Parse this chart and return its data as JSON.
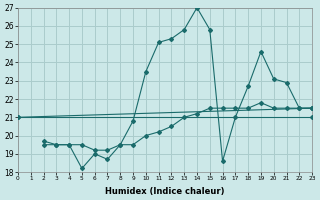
{
  "xlabel": "Humidex (Indice chaleur)",
  "bg_color": "#cce8e8",
  "grid_color": "#aacccc",
  "line_color": "#1a6b6b",
  "xlim": [
    0,
    23
  ],
  "ylim": [
    18,
    27
  ],
  "yticks": [
    18,
    19,
    20,
    21,
    22,
    23,
    24,
    25,
    26,
    27
  ],
  "xticks": [
    0,
    1,
    2,
    3,
    4,
    5,
    6,
    7,
    8,
    9,
    10,
    11,
    12,
    13,
    14,
    15,
    16,
    17,
    18,
    19,
    20,
    21,
    22,
    23
  ],
  "line1": {
    "x": [
      0,
      23
    ],
    "y": [
      21,
      21
    ]
  },
  "line2": {
    "x": [
      0,
      23
    ],
    "y": [
      21,
      21.5
    ]
  },
  "line3": {
    "x": [
      2,
      3,
      4,
      5,
      6,
      7,
      8,
      9,
      10,
      11,
      12,
      13,
      14,
      15,
      16,
      17,
      18,
      19,
      20,
      21,
      22,
      23
    ],
    "y": [
      19.5,
      19.5,
      19.5,
      18.2,
      19.0,
      18.7,
      19.5,
      20.8,
      23.5,
      25.1,
      25.3,
      25.8,
      27.0,
      25.8,
      18.6,
      21.0,
      22.7,
      24.6,
      23.1,
      22.9,
      21.5,
      21.5
    ]
  },
  "line4": {
    "x": [
      2,
      3,
      4,
      5,
      6,
      7,
      8,
      9,
      10,
      11,
      12,
      13,
      14,
      15,
      16,
      17,
      18,
      19,
      20,
      21,
      22,
      23
    ],
    "y": [
      19.7,
      19.5,
      19.5,
      19.5,
      19.2,
      19.2,
      19.5,
      19.5,
      20.0,
      20.2,
      20.5,
      21.0,
      21.2,
      21.5,
      21.5,
      21.5,
      21.5,
      21.8,
      21.5,
      21.5,
      21.5,
      21.5
    ]
  }
}
